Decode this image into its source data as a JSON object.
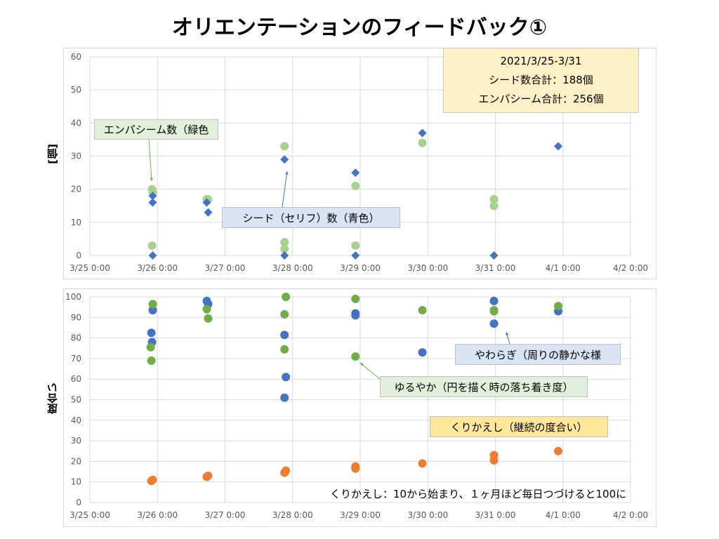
{
  "title": "オリエンテーションのフィードバック①",
  "summary": {
    "period": "2021/3/25-3/31",
    "seed_total": "シード数合計：188個",
    "empathy_total": "エンパシーム合計：256個"
  },
  "callouts": {
    "empathy": "エンパシーム数（緑色",
    "seed": "シード（セリフ）数（青色）",
    "yawaragi": "やわらぎ（周りの静かな様",
    "yuruyaka": "ゆるやか（円を描く時の落ち着き度）",
    "kurikaeshi": "くりかえし（継続の度合い）"
  },
  "note": "くりかえし：10から始まり、１ヶ月ほど毎日つづけると100に",
  "colors": {
    "green_light": "#a9d18e",
    "green": "#70ad47",
    "blue": "#4472c4",
    "orange": "#ed7d31",
    "grid": "#d9d9d9",
    "callout_green": "#e2efda",
    "callout_blue": "#dae3f3",
    "callout_yellow": "#ffe699",
    "summary_bg": "#fdf0c7"
  },
  "chart_data": [
    {
      "type": "scatter",
      "ylabel": "[個]",
      "ylim": [
        0,
        60
      ],
      "yticks": [
        0,
        10,
        20,
        30,
        40,
        50,
        60
      ],
      "x_tick_labels": [
        "3/25 0:00",
        "3/26 0:00",
        "3/27 0:00",
        "3/28 0:00",
        "3/29 0:00",
        "3/30 0:00",
        "3/31 0:00",
        "4/1 0:00",
        "4/2 0:00"
      ],
      "x_unit": "days since 3/25 0:00",
      "xlim": [
        0,
        8
      ],
      "grid": true,
      "series": [
        {
          "name": "エンパシーム数",
          "marker": "circle",
          "color": "#a9d18e",
          "points": [
            [
              0.92,
              20
            ],
            [
              0.93,
              19
            ],
            [
              0.92,
              3
            ],
            [
              1.73,
              17
            ],
            [
              1.75,
              17
            ],
            [
              2.88,
              33
            ],
            [
              2.88,
              4
            ],
            [
              2.88,
              2
            ],
            [
              3.93,
              21
            ],
            [
              3.93,
              3
            ],
            [
              4.92,
              34
            ],
            [
              5.98,
              17
            ],
            [
              5.98,
              15
            ]
          ]
        },
        {
          "name": "シード数",
          "marker": "diamond",
          "color": "#4472c4",
          "points": [
            [
              0.93,
              18
            ],
            [
              0.93,
              16
            ],
            [
              0.93,
              0
            ],
            [
              1.73,
              16
            ],
            [
              1.75,
              13
            ],
            [
              2.88,
              29
            ],
            [
              2.88,
              0
            ],
            [
              3.93,
              25
            ],
            [
              3.93,
              0
            ],
            [
              4.92,
              37
            ],
            [
              5.98,
              0
            ],
            [
              6.93,
              33
            ]
          ]
        }
      ]
    },
    {
      "type": "scatter",
      "ylabel": "度合い",
      "ylim": [
        0,
        100
      ],
      "yticks": [
        0,
        10,
        20,
        30,
        40,
        50,
        60,
        70,
        80,
        90,
        100
      ],
      "x_tick_labels": [
        "3/25 0:00",
        "3/26 0:00",
        "3/27 0:00",
        "3/28 0:00",
        "3/29 0:00",
        "3/30 0:00",
        "3/31 0:00",
        "4/1 0:00",
        "4/2 0:00"
      ],
      "x_unit": "days since 3/25 0:00",
      "xlim": [
        0,
        8
      ],
      "grid": true,
      "series": [
        {
          "name": "やわらぎ",
          "marker": "circle",
          "color": "#4472c4",
          "points": [
            [
              0.93,
              93.5
            ],
            [
              0.91,
              82.5
            ],
            [
              0.92,
              78
            ],
            [
              1.73,
              98
            ],
            [
              1.75,
              96.5
            ],
            [
              2.88,
              81.5
            ],
            [
              2.9,
              61
            ],
            [
              2.88,
              51
            ],
            [
              3.93,
              92
            ],
            [
              3.93,
              91
            ],
            [
              4.92,
              73
            ],
            [
              5.98,
              98
            ],
            [
              5.98,
              87
            ],
            [
              6.93,
              93
            ]
          ]
        },
        {
          "name": "ゆるやか",
          "marker": "circle",
          "color": "#70ad47",
          "points": [
            [
              0.93,
              96.5
            ],
            [
              0.9,
              75.5
            ],
            [
              0.91,
              69
            ],
            [
              1.73,
              94
            ],
            [
              1.75,
              89.5
            ],
            [
              2.9,
              100
            ],
            [
              2.88,
              91.5
            ],
            [
              2.88,
              74.5
            ],
            [
              3.93,
              99
            ],
            [
              3.93,
              71
            ],
            [
              4.92,
              93.5
            ],
            [
              5.98,
              93.5
            ],
            [
              5.98,
              93
            ],
            [
              6.93,
              95.5
            ]
          ]
        },
        {
          "name": "くりかえし",
          "marker": "circle",
          "color": "#ed7d31",
          "points": [
            [
              0.91,
              10.5
            ],
            [
              0.93,
              11
            ],
            [
              1.73,
              12.5
            ],
            [
              1.75,
              13
            ],
            [
              2.88,
              14.5
            ],
            [
              2.9,
              15.5
            ],
            [
              3.93,
              17.5
            ],
            [
              3.93,
              16.5
            ],
            [
              4.92,
              19
            ],
            [
              5.98,
              23
            ],
            [
              5.98,
              20.5
            ],
            [
              6.93,
              25
            ]
          ]
        }
      ]
    }
  ]
}
